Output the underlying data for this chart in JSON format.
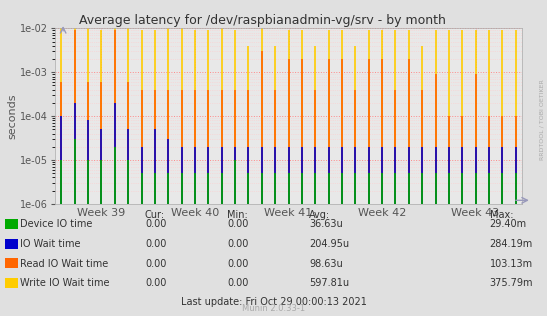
{
  "title": "Average latency for /dev/raspbianadmin-vg/srv - by month",
  "ylabel": "seconds",
  "background_color": "#e0e0e0",
  "plot_background": "#e8e8e8",
  "grid_color_major": "#ff8888",
  "grid_color_minor": "#ffcccc",
  "ylim_min": 1e-06,
  "ylim_max": 0.01,
  "week_labels": [
    "Week 39",
    "Week 40",
    "Week 41",
    "Week 42",
    "Week 43"
  ],
  "legend_entries": [
    {
      "label": "Device IO time",
      "color": "#00aa00"
    },
    {
      "label": "IO Wait time",
      "color": "#0000cc"
    },
    {
      "label": "Read IO Wait time",
      "color": "#ff6600"
    },
    {
      "label": "Write IO Wait time",
      "color": "#ffcc00"
    }
  ],
  "legend_stats": {
    "headers": [
      "Cur:",
      "Min:",
      "Avg:",
      "Max:"
    ],
    "rows": [
      [
        "0.00",
        "0.00",
        "36.63u",
        "29.40m"
      ],
      [
        "0.00",
        "0.00",
        "204.95u",
        "284.19m"
      ],
      [
        "0.00",
        "0.00",
        "98.63u",
        "103.13m"
      ],
      [
        "0.00",
        "0.00",
        "597.81u",
        "375.79m"
      ]
    ]
  },
  "footer": "Munin 2.0.33-1",
  "last_update": "Last update: Fri Oct 29 00:00:13 2021",
  "right_label": "RRDTOOL / TOBI OETIKER",
  "n_bars": 35,
  "write_io": [
    0.012,
    0.013,
    0.01,
    0.009,
    0.013,
    0.01,
    0.009,
    0.009,
    0.01,
    0.01,
    0.009,
    0.009,
    0.01,
    0.009,
    0.004,
    0.01,
    0.004,
    0.009,
    0.009,
    0.004,
    0.009,
    0.009,
    0.004,
    0.009,
    0.009,
    0.009,
    0.009,
    0.004,
    0.009,
    0.009,
    0.009,
    0.009,
    0.009,
    0.009,
    0.009
  ],
  "read_io": [
    0.0006,
    0.009,
    0.0006,
    0.0006,
    0.009,
    0.0006,
    0.0004,
    0.0004,
    0.0004,
    0.0004,
    0.0004,
    0.0004,
    0.0004,
    0.0004,
    0.0004,
    0.003,
    0.0004,
    0.002,
    0.002,
    0.0004,
    0.002,
    0.002,
    0.0004,
    0.002,
    0.002,
    0.0004,
    0.002,
    0.0004,
    0.0009,
    0.0001,
    0.0001,
    0.0009,
    0.0001,
    0.0001,
    0.0001
  ],
  "io_wait": [
    0.0001,
    0.0002,
    8e-05,
    5e-05,
    0.0002,
    5e-05,
    2e-05,
    5e-05,
    3e-05,
    2e-05,
    2e-05,
    2e-05,
    2e-05,
    2e-05,
    2e-05,
    2e-05,
    2e-05,
    2e-05,
    2e-05,
    2e-05,
    2e-05,
    2e-05,
    2e-05,
    2e-05,
    2e-05,
    2e-05,
    2e-05,
    2e-05,
    2e-05,
    2e-05,
    2e-05,
    2e-05,
    2e-05,
    2e-05,
    2e-05
  ],
  "device_io": [
    1e-05,
    3e-05,
    1e-05,
    1e-05,
    2e-05,
    1e-05,
    5e-06,
    5e-06,
    5e-06,
    5e-06,
    5e-06,
    5e-06,
    5e-06,
    1e-05,
    5e-06,
    5e-06,
    5e-06,
    5e-06,
    5e-06,
    5e-06,
    5e-06,
    5e-06,
    5e-06,
    5e-06,
    5e-06,
    5e-06,
    5e-06,
    5e-06,
    5e-06,
    5e-06,
    5e-06,
    5e-06,
    5e-06,
    5e-06,
    5e-06
  ]
}
